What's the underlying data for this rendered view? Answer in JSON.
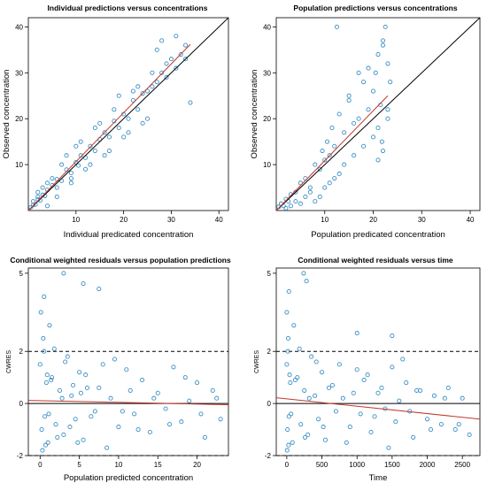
{
  "colors": {
    "points": "#3a8fc4",
    "identity_line": "#000000",
    "smooth_line": "#c0392b",
    "reference_dashed": "#000000"
  },
  "chart_data": [
    {
      "type": "scatter",
      "title": "Individual predictions versus concentrations",
      "xlabel": "Individual predicated concentration",
      "ylabel": "Observed concentration",
      "xlim": [
        0,
        42
      ],
      "ylim": [
        0,
        42
      ],
      "xticks": [
        10,
        20,
        30,
        40
      ],
      "yticks": [
        10,
        20,
        30,
        40
      ],
      "lines": [
        {
          "kind": "identity",
          "points": [
            [
              0,
              0
            ],
            [
              42,
              42
            ]
          ]
        },
        {
          "kind": "smooth",
          "points": [
            [
              0,
              0
            ],
            [
              34,
              36.2
            ]
          ]
        }
      ],
      "x": [
        0.5,
        1,
        1.5,
        2,
        2.5,
        3,
        3.5,
        4,
        5,
        6,
        7,
        8,
        9,
        10,
        10.5,
        11,
        12,
        13,
        14,
        15,
        16,
        17,
        18,
        19,
        20,
        21,
        22,
        23,
        24,
        25,
        26,
        27,
        28,
        29,
        30,
        31,
        32,
        33,
        34,
        2,
        3,
        4,
        5,
        6,
        8,
        9,
        11,
        12,
        14,
        16,
        18,
        20,
        22,
        24,
        26,
        28,
        1,
        2,
        4,
        6,
        7,
        9,
        10,
        13,
        15,
        17,
        19,
        21,
        23,
        25,
        27,
        29,
        31,
        33
      ],
      "y": [
        0.7,
        1.2,
        1.3,
        2.4,
        2.2,
        3.4,
        3.2,
        4.5,
        5.5,
        6.8,
        6.5,
        8.9,
        8.2,
        10.5,
        9.8,
        12,
        11.5,
        14,
        13,
        15.5,
        17,
        16,
        19.5,
        18,
        21,
        20,
        24,
        22,
        25.5,
        26,
        27,
        28,
        30,
        29,
        33,
        31,
        34,
        33,
        23.5,
        4,
        5,
        6,
        7,
        3,
        12,
        6,
        15,
        9,
        18,
        12,
        22,
        16,
        26,
        19,
        30,
        37,
        2,
        3,
        1,
        5,
        10,
        7,
        14,
        10,
        19,
        13,
        25,
        17,
        27,
        20,
        35,
        32,
        38,
        36
      ]
    },
    {
      "type": "scatter",
      "title": "Population predictions versus concentrations",
      "xlabel": "Population predicated concentration",
      "ylabel": "Observed concentration",
      "xlim": [
        0,
        42
      ],
      "ylim": [
        0,
        42
      ],
      "xticks": [
        10,
        20,
        30,
        40
      ],
      "yticks": [
        10,
        20,
        30,
        40
      ],
      "lines": [
        {
          "kind": "identity",
          "points": [
            [
              0,
              0
            ],
            [
              42,
              42
            ]
          ]
        },
        {
          "kind": "smooth",
          "points": [
            [
              0,
              0
            ],
            [
              23,
              25
            ]
          ]
        }
      ],
      "x": [
        0.5,
        1,
        1.5,
        2,
        2.5,
        3,
        4,
        5,
        6,
        7,
        8,
        9,
        9.5,
        10,
        10.5,
        11,
        11.5,
        12,
        13,
        14,
        15,
        16,
        17,
        18,
        19,
        20,
        20.5,
        21,
        21.5,
        22,
        22.5,
        23,
        23.5,
        5,
        6,
        8,
        10,
        12,
        14,
        16,
        18,
        20,
        21,
        22,
        23,
        2,
        3,
        4,
        7,
        9,
        11,
        13,
        15,
        17,
        19,
        21,
        22,
        23,
        12.5,
        21.8
      ],
      "y": [
        0.8,
        1.5,
        1,
        2.5,
        2,
        3.5,
        4,
        6,
        7,
        5,
        10,
        9,
        13,
        11,
        15,
        12,
        18,
        14,
        21,
        17,
        24,
        19,
        20,
        28,
        22,
        26,
        30,
        34,
        23,
        37,
        40,
        32,
        28,
        1.5,
        3,
        2,
        5,
        7,
        10,
        12,
        14,
        16,
        11,
        13,
        20,
        0.5,
        1,
        2,
        4,
        3,
        6,
        8,
        25,
        30,
        31,
        18,
        36,
        22,
        40,
        15
      ]
    },
    {
      "type": "scatter",
      "title": "Conditional weighted residuals versus population predictions",
      "xlabel": "Population predicted concentration",
      "ylabel": "CWRES",
      "xlim": [
        -1.5,
        24
      ],
      "ylim": [
        -2,
        5.2
      ],
      "xticks": [
        0,
        5,
        10,
        15,
        20
      ],
      "yticks": [
        -2,
        0,
        2,
        5
      ],
      "hlines_dashed": [
        -2,
        2
      ],
      "lines": [
        {
          "kind": "zero",
          "points": [
            [
              -1.5,
              0
            ],
            [
              24,
              0
            ]
          ]
        },
        {
          "kind": "smooth",
          "points": [
            [
              -1.5,
              0.12
            ],
            [
              24,
              -0.05
            ]
          ]
        }
      ],
      "x": [
        0,
        0.2,
        0.4,
        0.6,
        0.8,
        1,
        1.2,
        1.5,
        2,
        2.5,
        3,
        3.5,
        4,
        4.5,
        5,
        5.5,
        6,
        7,
        8,
        9,
        10,
        11,
        12,
        13,
        14,
        15,
        16,
        17,
        18,
        19,
        20,
        21,
        22,
        23,
        0.1,
        0.3,
        0.5,
        0.7,
        0.9,
        1.1,
        1.4,
        1.8,
        2.2,
        2.8,
        3.2,
        3.8,
        4.2,
        4.8,
        5.2,
        5.8,
        6.5,
        7.5,
        8.5,
        9.5,
        10.5,
        11.5,
        12.5,
        14.5,
        16.5,
        18.5,
        20.5,
        22.5,
        3,
        5.5,
        7.5,
        0.5
      ],
      "y": [
        1.5,
        -1,
        2.5,
        -0.5,
        0.8,
        -1.5,
        3,
        1,
        -0.8,
        0.5,
        -1.2,
        1.8,
        0.3,
        -0.6,
        1.2,
        -1.4,
        0.6,
        -0.3,
        1.5,
        0.2,
        -0.9,
        1.3,
        -0.4,
        0.9,
        -1.1,
        0.4,
        -0.2,
        1.4,
        -0.7,
        0.1,
        0.8,
        -1.3,
        0.5,
        -0.6,
        3.5,
        -1.8,
        2,
        -1.6,
        1.1,
        -0.4,
        0.9,
        2.1,
        -1.3,
        0.2,
        1.6,
        -0.9,
        0.7,
        -1.5,
        0.4,
        1.1,
        -0.5,
        0.6,
        -1.7,
        1.7,
        -0.3,
        0.5,
        -1,
        0.2,
        -0.8,
        1,
        -0.4,
        0.2,
        5,
        4.6,
        4.4,
        4.1
      ]
    },
    {
      "type": "scatter",
      "title": "Conditional weighted residuals versus time",
      "xlabel": "Time",
      "ylabel": "CWRES",
      "xlim": [
        -150,
        2750
      ],
      "ylim": [
        -2,
        5.2
      ],
      "xticks": [
        0,
        500,
        1000,
        1500,
        2000,
        2500
      ],
      "yticks": [
        -2,
        0,
        2,
        5
      ],
      "hlines_dashed": [
        -2,
        2
      ],
      "lines": [
        {
          "kind": "zero",
          "points": [
            [
              -150,
              0
            ],
            [
              2750,
              0
            ]
          ]
        },
        {
          "kind": "smooth",
          "points": [
            [
              -150,
              0.22
            ],
            [
              2750,
              -0.6
            ]
          ]
        }
      ],
      "x": [
        0,
        10,
        20,
        30,
        50,
        80,
        100,
        150,
        200,
        250,
        300,
        350,
        400,
        450,
        500,
        550,
        600,
        700,
        750,
        800,
        900,
        1000,
        1050,
        1100,
        1200,
        1300,
        1400,
        1500,
        1550,
        1600,
        1700,
        1800,
        1900,
        2000,
        2100,
        2200,
        2300,
        2400,
        2500,
        2600,
        0,
        5,
        15,
        25,
        40,
        60,
        120,
        180,
        260,
        320,
        420,
        520,
        650,
        850,
        950,
        1150,
        1250,
        1350,
        1450,
        1650,
        1750,
        1850,
        2050,
        2250,
        2450,
        240,
        280,
        30,
        1000,
        1500
      ],
      "y": [
        1.5,
        -1,
        2.5,
        -0.5,
        0.8,
        -1.5,
        3,
        1,
        -0.8,
        0.5,
        -1.2,
        1.8,
        0.3,
        -0.6,
        1.2,
        -1.4,
        0.6,
        -0.3,
        1.5,
        0.2,
        -0.9,
        1.3,
        -0.4,
        0.9,
        -1.1,
        0.4,
        -0.2,
        1.4,
        -0.7,
        0.1,
        0.8,
        -1.3,
        0.5,
        -0.6,
        0.3,
        -0.8,
        0.6,
        -1,
        0.2,
        -1.2,
        3.5,
        -1.8,
        2,
        -1.6,
        1.1,
        -0.4,
        0.9,
        2.1,
        -1.3,
        0.2,
        1.6,
        -0.9,
        0.7,
        -1.5,
        0.4,
        1.1,
        -0.5,
        0.6,
        -1.7,
        1.7,
        -0.3,
        0.5,
        -1,
        0.2,
        -0.8,
        5,
        4.7,
        4.3,
        2.7,
        2.6
      ]
    }
  ]
}
